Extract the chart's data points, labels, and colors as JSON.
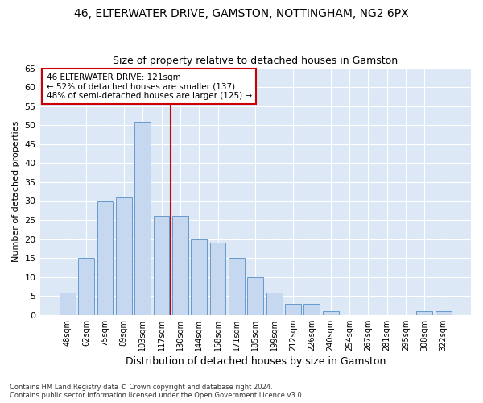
{
  "title_line1": "46, ELTERWATER DRIVE, GAMSTON, NOTTINGHAM, NG2 6PX",
  "title_line2": "Size of property relative to detached houses in Gamston",
  "xlabel": "Distribution of detached houses by size in Gamston",
  "ylabel": "Number of detached properties",
  "bar_labels": [
    "48sqm",
    "62sqm",
    "75sqm",
    "89sqm",
    "103sqm",
    "117sqm",
    "130sqm",
    "144sqm",
    "158sqm",
    "171sqm",
    "185sqm",
    "199sqm",
    "212sqm",
    "226sqm",
    "240sqm",
    "254sqm",
    "267sqm",
    "281sqm",
    "295sqm",
    "308sqm",
    "322sqm"
  ],
  "bar_values": [
    6,
    15,
    30,
    31,
    51,
    26,
    26,
    20,
    19,
    15,
    10,
    6,
    3,
    3,
    1,
    0,
    0,
    0,
    0,
    1,
    1
  ],
  "bar_color": "#c5d8f0",
  "bar_edgecolor": "#6699cc",
  "vline_color": "#cc0000",
  "annotation_lines": [
    "46 ELTERWATER DRIVE: 121sqm",
    "← 52% of detached houses are smaller (137)",
    "48% of semi-detached houses are larger (125) →"
  ],
  "annotation_box_facecolor": "#ffffff",
  "annotation_box_edgecolor": "#cc0000",
  "ylim": [
    0,
    65
  ],
  "yticks": [
    0,
    5,
    10,
    15,
    20,
    25,
    30,
    35,
    40,
    45,
    50,
    55,
    60,
    65
  ],
  "footnote_line1": "Contains HM Land Registry data © Crown copyright and database right 2024.",
  "footnote_line2": "Contains public sector information licensed under the Open Government Licence v3.0.",
  "fig_bg_color": "#ffffff",
  "plot_bg_color": "#dce8f5"
}
